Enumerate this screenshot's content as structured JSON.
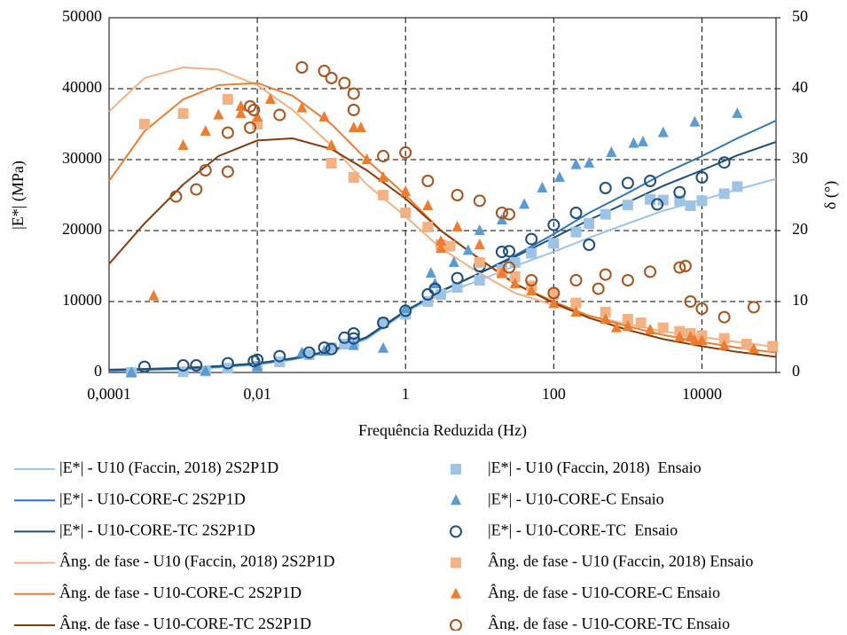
{
  "chart_data": {
    "type": "line",
    "x_label": "Frequência Reduzida (Hz)",
    "y_label": "|E*| (MPa)",
    "y2_label": "δ (°)",
    "xscale": "log",
    "xlim": [
      0.0001,
      100000
    ],
    "xticks": [
      {
        "value": 0.0001,
        "label": "0,0001"
      },
      {
        "value": 0.01,
        "label": "0,01"
      },
      1,
      100,
      10000
    ],
    "ylim": [
      0,
      50000
    ],
    "yticks": [
      0,
      10000,
      20000,
      30000,
      40000,
      50000
    ],
    "y2lim": [
      0,
      50
    ],
    "y2ticks": [
      0,
      10,
      20,
      30,
      40,
      50
    ],
    "grid": true,
    "legend": "bottom",
    "series": [
      {
        "name": "|E*| - U10 (Faccin, 2018) 2S2P1D",
        "color": "#9dc3e6",
        "style": "line",
        "x": [
          0.0001,
          0.0003,
          0.001,
          0.003,
          0.01,
          0.03,
          0.1,
          0.3,
          1,
          3,
          10,
          30,
          100,
          300,
          1000,
          3000,
          10000,
          30000,
          100000
        ],
        "values": [
          200,
          300,
          450,
          700,
          1100,
          1800,
          2900,
          4700,
          8500,
          11000,
          13000,
          15000,
          17000,
          19000,
          21000,
          22800,
          24300,
          25800,
          27300
        ]
      },
      {
        "name": "|E*| - U10-CORE-C 2S2P1D",
        "color": "#2e75b6",
        "style": "line",
        "x": [
          0.0001,
          0.0003,
          0.001,
          0.003,
          0.01,
          0.03,
          0.1,
          0.3,
          1,
          3,
          10,
          30,
          100,
          300,
          1000,
          3000,
          10000,
          30000,
          100000
        ],
        "values": [
          300,
          400,
          550,
          800,
          1200,
          1900,
          3000,
          4900,
          8600,
          11500,
          14000,
          16500,
          19500,
          22500,
          25300,
          28000,
          30500,
          33000,
          35500
        ]
      },
      {
        "name": "|E*| - U10-CORE-TC 2S2P1D",
        "color": "#1f4e79",
        "style": "line",
        "x": [
          0.0001,
          0.0003,
          0.001,
          0.003,
          0.01,
          0.03,
          0.1,
          0.3,
          1,
          3,
          10,
          30,
          100,
          300,
          1000,
          3000,
          10000,
          30000,
          100000
        ],
        "values": [
          400,
          500,
          650,
          900,
          1300,
          2000,
          3100,
          5000,
          8700,
          11400,
          14000,
          16300,
          19000,
          21500,
          24000,
          26300,
          28500,
          30600,
          32500
        ]
      },
      {
        "name": "Âng. de fase - U10 (Faccin, 2018) 2S2P1D",
        "color": "#f4b183",
        "style": "line",
        "axis": "y2",
        "x": [
          0.0001,
          0.0003,
          0.001,
          0.003,
          0.01,
          0.03,
          0.1,
          0.3,
          1,
          3,
          10,
          30,
          100,
          300,
          1000,
          3000,
          10000,
          30000,
          100000
        ],
        "values": [
          36.8,
          41.5,
          43,
          42.7,
          40.5,
          37,
          32,
          26.5,
          22,
          17.5,
          14,
          11.2,
          9.5,
          8,
          6.8,
          5.8,
          5,
          4.3,
          3.6
        ]
      },
      {
        "name": "Âng. de fase - U10-CORE-C 2S2P1D",
        "color": "#ed7d31",
        "style": "line",
        "axis": "y2",
        "x": [
          0.0001,
          0.0003,
          0.001,
          0.003,
          0.01,
          0.03,
          0.1,
          0.3,
          1,
          3,
          10,
          30,
          100,
          300,
          1000,
          3000,
          10000,
          30000,
          100000
        ],
        "values": [
          27,
          34,
          38.5,
          40.5,
          40.8,
          39,
          35,
          30,
          25,
          20,
          16,
          12.5,
          10,
          8,
          6.5,
          5.3,
          4.3,
          3.5,
          2.8
        ]
      },
      {
        "name": "Âng. de fase - U10-CORE-TC 2S2P1D",
        "color": "#843c0c",
        "style": "line",
        "axis": "y2",
        "x": [
          0.0001,
          0.0003,
          0.001,
          0.003,
          0.01,
          0.03,
          0.1,
          0.3,
          1,
          3,
          10,
          30,
          100,
          300,
          1000,
          3000,
          10000,
          30000,
          100000
        ],
        "values": [
          15.3,
          21,
          26.5,
          30.5,
          32.7,
          33,
          31.5,
          28.5,
          24.5,
          20,
          16,
          12.5,
          9.8,
          7.7,
          6,
          4.7,
          3.7,
          2.9,
          2.2
        ]
      },
      {
        "name": "|E*| - U10 (Faccin, 2018)  Ensaio",
        "color": "#9dc3e6",
        "style": "marker",
        "marker": "square",
        "x": [
          0.0002,
          0.001,
          0.002,
          0.004,
          0.01,
          0.02,
          0.05,
          0.1,
          0.15,
          0.2,
          0.5,
          1,
          2,
          3,
          5,
          10,
          20,
          30,
          50,
          100,
          200,
          300,
          500,
          1000,
          2000,
          3000,
          5000,
          7000,
          10000,
          20000,
          30000
        ],
        "values": [
          0,
          100,
          200,
          600,
          900,
          1500,
          2500,
          3500,
          4000,
          4300,
          7000,
          8200,
          10000,
          11000,
          12000,
          13000,
          14500,
          15500,
          16800,
          18200,
          19800,
          21000,
          22300,
          23600,
          24400,
          24300,
          24200,
          23500,
          24200,
          25200,
          26200
        ]
      },
      {
        "name": "|E*| - U10-CORE-C Ensaio",
        "color": "#5b9bd5",
        "style": "marker",
        "marker": "triangle",
        "x": [
          0.0002,
          0.002,
          0.01,
          0.04,
          0.08,
          0.2,
          0.5,
          1,
          2.2,
          2.5,
          4.5,
          7,
          10,
          20,
          40,
          70,
          120,
          200,
          300,
          600,
          1200,
          1600,
          3000,
          8000,
          30000
        ],
        "values": [
          0,
          200,
          800,
          2800,
          3000,
          3800,
          3400,
          9000,
          14000,
          12500,
          15500,
          17200,
          20000,
          21500,
          23700,
          26000,
          27500,
          29300,
          29500,
          31000,
          32300,
          32500,
          33800,
          35300,
          36500
        ]
      },
      {
        "name": "|E*| - U10-CORE-TC  Ensaio",
        "color": "#1f4e79",
        "style": "marker",
        "marker": "circle",
        "x": [
          0.0003,
          0.001,
          0.0015,
          0.004,
          0.009,
          0.01,
          0.02,
          0.05,
          0.08,
          0.1,
          0.15,
          0.2,
          0.2,
          0.5,
          1,
          2,
          2.5,
          5,
          10,
          20,
          25,
          50,
          100,
          200,
          300,
          500,
          1000,
          2000,
          2500,
          5000,
          10000,
          20000
        ],
        "values": [
          800,
          1000,
          1000,
          1300,
          1600,
          1800,
          2300,
          2800,
          3500,
          3300,
          4900,
          5500,
          4800,
          7000,
          8700,
          11000,
          11800,
          13300,
          15000,
          17000,
          17100,
          18800,
          20800,
          22500,
          18000,
          26000,
          26700,
          27000,
          23700,
          25400,
          27500,
          29600
        ]
      },
      {
        "name": "Âng. de fase - U10 (Faccin, 2018) Ensaio",
        "color": "#f4b183",
        "style": "marker",
        "marker": "square",
        "axis": "y2",
        "x": [
          0.0003,
          0.001,
          0.004,
          0.01,
          0.1,
          0.2,
          0.5,
          1,
          2,
          3,
          4,
          10,
          20,
          30,
          50,
          100,
          200,
          500,
          1000,
          1500,
          3000,
          5000,
          7000,
          10000,
          20000,
          40000,
          90000
        ],
        "values": [
          35,
          36.5,
          38.5,
          35,
          29.5,
          27.5,
          25,
          22.5,
          20.5,
          18,
          17.8,
          15.5,
          14,
          13.5,
          12.2,
          11,
          9.8,
          8.5,
          7.5,
          7,
          6.3,
          5.8,
          5.5,
          5.2,
          4.8,
          4,
          3.7
        ]
      },
      {
        "name": "Âng. de fase - U10-CORE-C Ensaio",
        "color": "#ed7d31",
        "style": "marker",
        "marker": "triangle",
        "axis": "y2",
        "x": [
          0.0004,
          0.001,
          0.002,
          0.003,
          0.006,
          0.006,
          0.01,
          0.015,
          0.04,
          0.08,
          0.1,
          0.2,
          0.25,
          0.3,
          0.5,
          1,
          2,
          3,
          3,
          5,
          10,
          20,
          30,
          50,
          100,
          200,
          500,
          700,
          1000,
          2000,
          5000,
          7000,
          8000,
          10000,
          20000,
          50000
        ],
        "values": [
          10.8,
          32,
          34,
          36.3,
          37.5,
          36.5,
          36,
          38.5,
          37.3,
          36,
          32,
          34.5,
          34.5,
          30,
          27.5,
          25.5,
          23.5,
          17.5,
          18.5,
          20.5,
          18,
          14,
          12.5,
          11.5,
          9.7,
          8.5,
          7.5,
          6.3,
          6.5,
          6,
          5,
          5,
          4.5,
          4.5,
          3.8,
          3.3
        ]
      },
      {
        "name": "Âng. de fase - U10-CORE-TC Ensaio",
        "color": "#a9531c",
        "style": "marker",
        "marker": "circle",
        "axis": "y2",
        "x": [
          0.0008,
          0.0015,
          0.002,
          0.004,
          0.004,
          0.008,
          0.008,
          0.009,
          0.02,
          0.04,
          0.08,
          0.1,
          0.15,
          0.2,
          0.2,
          0.5,
          1,
          2,
          5,
          10,
          20,
          25,
          25,
          50,
          100,
          200,
          400,
          500,
          1000,
          2000,
          5000,
          6000,
          7000,
          10000,
          20000,
          50000
        ],
        "values": [
          24.8,
          25.8,
          28.5,
          28.3,
          33.8,
          34.5,
          37.5,
          37,
          36.3,
          43,
          42.5,
          41.5,
          40.8,
          39.3,
          37,
          30.5,
          31,
          27,
          25,
          24.2,
          22.5,
          22.3,
          14.8,
          13,
          11.2,
          13,
          11.8,
          13.8,
          13,
          14.2,
          14.8,
          15,
          10,
          9,
          7.8,
          9.2
        ]
      }
    ]
  }
}
